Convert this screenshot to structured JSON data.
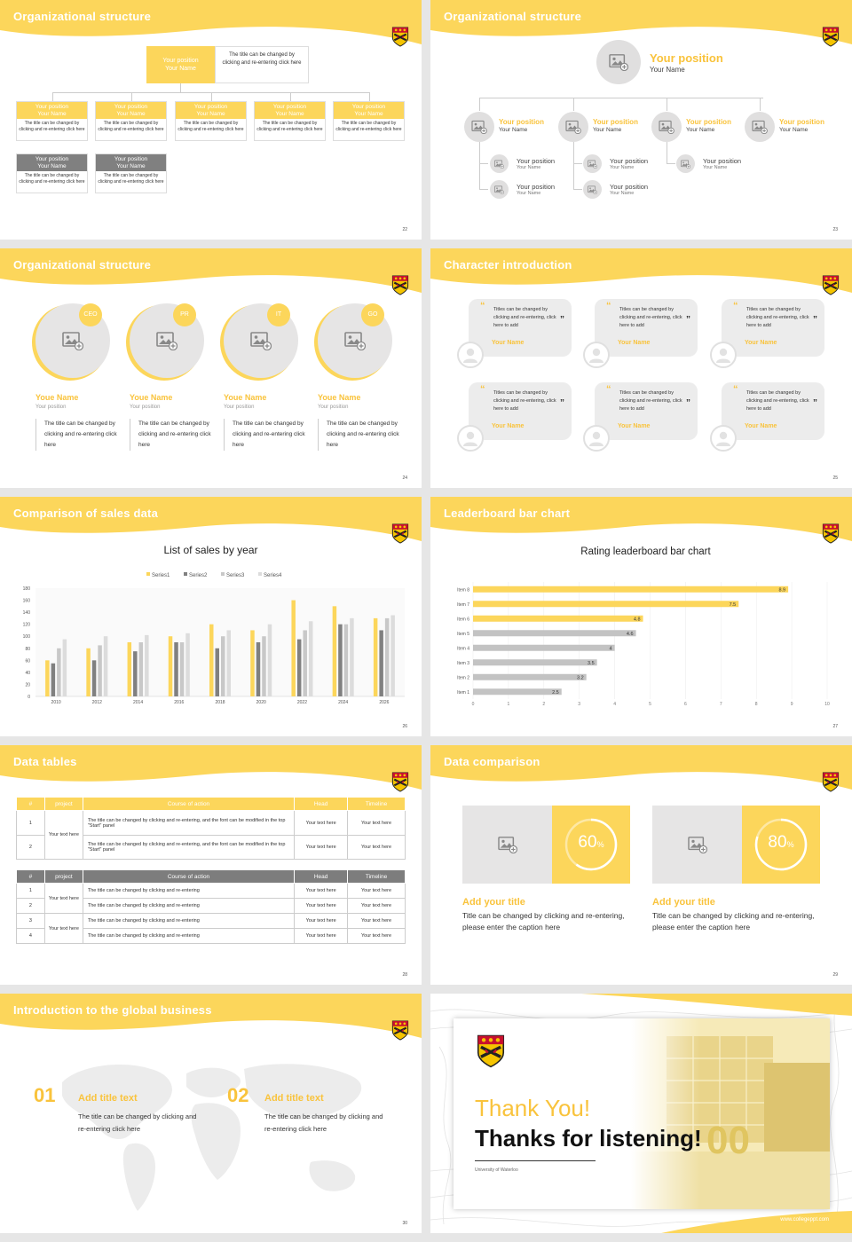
{
  "colors": {
    "accent": "#fcd65b",
    "accent_text": "#f9c33c",
    "gray_bar": "#bdbdbd",
    "dark_gray": "#7d7d7d"
  },
  "slides": [
    {
      "title": "Organizational structure",
      "page": "22",
      "top": {
        "position": "Your position",
        "name": "Your Name",
        "desc": "The title can be changed by clicking and re-entering click here"
      },
      "boxes": [
        {
          "position": "Your position",
          "name": "Your Name",
          "desc": "The title can be changed by clicking and re-entering click here"
        },
        {
          "position": "Your position",
          "name": "Your Name",
          "desc": "The title can be changed by clicking and re-entering click here"
        },
        {
          "position": "Your position",
          "name": "Your Name",
          "desc": "The title can be changed by clicking and re-entering click here"
        },
        {
          "position": "Your position",
          "name": "Your Name",
          "desc": "The title can be changed by clicking and re-entering click here"
        },
        {
          "position": "Your position",
          "name": "Your Name",
          "desc": "The title can be changed by clicking and re-entering click here"
        },
        {
          "position": "Your position",
          "name": "Your Name",
          "desc": "The title can be changed by clicking and re-entering click here"
        },
        {
          "position": "Your position",
          "name": "Your Name",
          "desc": "The title can be changed by clicking and re-entering click here"
        }
      ]
    },
    {
      "title": "Organizational structure",
      "page": "23",
      "top": {
        "position": "Your position",
        "name": "Your Name"
      },
      "mid": [
        {
          "position": "Your position",
          "name": "Your Name"
        },
        {
          "position": "Your position",
          "name": "Your Name"
        },
        {
          "position": "Your position",
          "name": "Your Name"
        },
        {
          "position": "Your position",
          "name": "Your Name"
        }
      ],
      "sub": [
        {
          "position": "Your position",
          "name": "Your Name"
        },
        {
          "position": "Your position",
          "name": "Your Name"
        },
        {
          "position": "Your position",
          "name": "Your Name"
        },
        {
          "position": "Your position",
          "name": "Your Name"
        },
        {
          "position": "Your position",
          "name": "Your Name"
        }
      ]
    },
    {
      "title": "Organizational structure",
      "page": "24",
      "people": [
        {
          "badge": "CEO",
          "name": "Youe Name",
          "position": "Your position",
          "desc": "The title can be changed by clicking and re-entering click here"
        },
        {
          "badge": "PR",
          "name": "Youe Name",
          "position": "Your position",
          "desc": "The title can be changed by clicking and re-entering click here"
        },
        {
          "badge": "IT",
          "name": "Youe Name",
          "position": "Your position",
          "desc": "The title can be changed by clicking and re-entering click here"
        },
        {
          "badge": "GO",
          "name": "Youe Name",
          "position": "Your position",
          "desc": "The title can be changed by clicking and re-entering click here"
        }
      ]
    },
    {
      "title": "Character introduction",
      "page": "25",
      "cards": [
        {
          "text": "Titles can be changed by clicking and re-entering, click here to add",
          "name": "Your Name"
        },
        {
          "text": "Titles can be changed by clicking and re-entering, click here to add",
          "name": "Your Name"
        },
        {
          "text": "Titles can be changed by clicking and re-entering, click here to add",
          "name": "Your Name"
        },
        {
          "text": "Titles can be changed by clicking and re-entering, click here to add",
          "name": "Your Name"
        },
        {
          "text": "Titles can be changed by clicking and re-entering, click here to add",
          "name": "Your Name"
        },
        {
          "text": "Titles can be changed by clicking and re-entering, click here to add",
          "name": "Your Name"
        }
      ]
    },
    {
      "title": "Comparison of sales data",
      "page": "26"
    },
    {
      "title": "Leaderboard bar chart",
      "page": "27"
    },
    {
      "title": "Data tables",
      "page": "28",
      "table1": {
        "headers": [
          "#",
          "project",
          "Course of action",
          "Head",
          "Timeline"
        ],
        "group": "Your text here",
        "rows": [
          {
            "num": "1",
            "action": "The title can be changed by clicking and re-entering, and the font can be modified in the top \"Start\" panel",
            "head": "Your text here",
            "time": "Your text here"
          },
          {
            "num": "2",
            "action": "The title can be changed by clicking and re-entering, and the font can be modified in the top \"Start\" panel",
            "head": "Your text here",
            "time": "Your text here"
          }
        ]
      },
      "table2": {
        "headers": [
          "#",
          "project",
          "Course of action",
          "Head",
          "Timeline"
        ],
        "group1": "Your text here",
        "group2": "Your text here",
        "rows": [
          {
            "num": "1",
            "action": "The title can be changed by clicking and re-entering",
            "head": "Your text here",
            "time": "Your text here"
          },
          {
            "num": "2",
            "action": "The title can be changed by clicking and re-entering",
            "head": "Your text here",
            "time": "Your text here"
          },
          {
            "num": "3",
            "action": "The title can be changed by clicking and re-entering",
            "head": "Your text here",
            "time": "Your text here"
          },
          {
            "num": "4",
            "action": "The title can be changed by clicking and re-entering",
            "head": "Your text here",
            "time": "Your text here"
          }
        ]
      }
    },
    {
      "title": "Data comparison",
      "page": "29",
      "items": [
        {
          "percent": "60",
          "unit": "%",
          "value": 0.6,
          "title": "Add your title",
          "desc": "Title can be changed by clicking and re-entering, please enter the caption here"
        },
        {
          "percent": "80",
          "unit": "%",
          "value": 0.8,
          "title": "Add your title",
          "desc": "Title can be changed by clicking and re-entering, please enter the caption here"
        }
      ]
    },
    {
      "title": "Introduction to the global business",
      "page": "30",
      "items": [
        {
          "num": "01",
          "title": "Add title text",
          "desc": "The title can be changed by clicking and re-entering click here"
        },
        {
          "num": "02",
          "title": "Add title text",
          "desc": "The title can be changed by clicking and re-entering click here"
        }
      ]
    },
    {
      "thanks1": "Thank You!",
      "thanks2": "Thanks for listening!",
      "university": "University of Waterloo",
      "website": "www.collegeppt.com",
      "building_sign": "00"
    }
  ],
  "chart_data": [
    {
      "type": "bar",
      "title": "List of sales by year",
      "categories": [
        "2010",
        "2012",
        "2014",
        "2016",
        "2018",
        "2020",
        "2022",
        "2024",
        "2026"
      ],
      "series": [
        {
          "name": "Series1",
          "color": "#fcd65b",
          "values": [
            60,
            80,
            90,
            100,
            120,
            110,
            160,
            150,
            130
          ]
        },
        {
          "name": "Series2",
          "color": "#808080",
          "values": [
            55,
            60,
            75,
            90,
            80,
            90,
            95,
            120,
            110
          ]
        },
        {
          "name": "Series3",
          "color": "#c8c8c8",
          "values": [
            80,
            85,
            90,
            90,
            100,
            100,
            110,
            120,
            130
          ]
        },
        {
          "name": "Series4",
          "color": "#dcdcdc",
          "values": [
            95,
            100,
            102,
            105,
            110,
            120,
            125,
            130,
            135
          ]
        }
      ],
      "ylim": [
        0,
        180
      ],
      "yticks": [
        "0",
        "20",
        "40",
        "60",
        "80",
        "100",
        "120",
        "140",
        "160",
        "180"
      ],
      "legend": "top"
    },
    {
      "type": "bar",
      "orientation": "horizontal",
      "title": "Rating leaderboard bar chart",
      "categories": [
        "Item 8",
        "Item 7",
        "Item 6",
        "Item 5",
        "Item 4",
        "Item 3",
        "Item 2",
        "Item 1"
      ],
      "values": [
        8.9,
        7.5,
        4.8,
        4.6,
        4,
        3.5,
        3.2,
        2.5
      ],
      "value_labels": [
        "8.9",
        "7.5",
        "4.8",
        "4.6",
        "4",
        "3.5",
        "3.2",
        "2.5"
      ],
      "highlight_colors": [
        "#fcd65b",
        "#fcd65b",
        "#fcd65b",
        "#c3c3c3",
        "#c3c3c3",
        "#c3c3c3",
        "#c3c3c3",
        "#c3c3c3"
      ],
      "xlim": [
        0,
        10
      ],
      "xticks": [
        "0",
        "1",
        "2",
        "3",
        "4",
        "5",
        "6",
        "7",
        "8",
        "9",
        "10"
      ]
    }
  ]
}
